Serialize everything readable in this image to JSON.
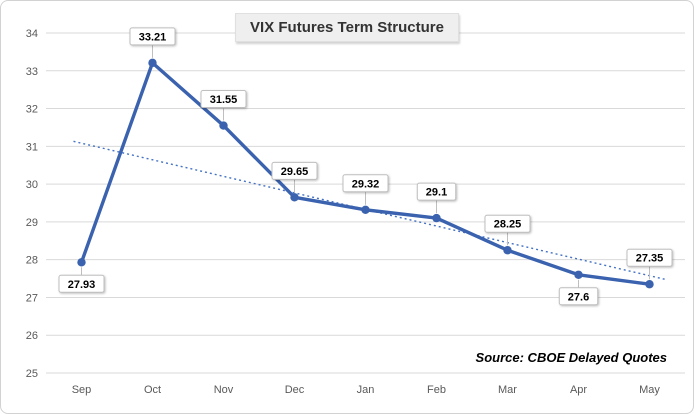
{
  "chart": {
    "title": "VIX Futures Term Structure",
    "source": "Source: CBOE Delayed Quotes"
  },
  "chart_data": {
    "type": "line",
    "title": "VIX Futures Term Structure",
    "categories": [
      "Sep",
      "Oct",
      "Nov",
      "Dec",
      "Jan",
      "Feb",
      "Mar",
      "Apr",
      "May"
    ],
    "series": [
      {
        "name": "VIX Futures",
        "values": [
          27.93,
          33.21,
          31.55,
          29.65,
          29.32,
          29.1,
          28.25,
          27.6,
          27.35
        ]
      }
    ],
    "data_labels": [
      "27.93",
      "33.21",
      "31.55",
      "29.65",
      "29.32",
      "29.1",
      "28.25",
      "27.6",
      "27.35"
    ],
    "label_positions": [
      "below",
      "above",
      "above",
      "above",
      "above",
      "above",
      "above",
      "below",
      "above"
    ],
    "xlabel": "",
    "ylabel": "",
    "ylim": [
      25,
      34
    ],
    "y_ticks": [
      25,
      26,
      27,
      28,
      29,
      30,
      31,
      32,
      33,
      34
    ],
    "grid": true,
    "legend": "none",
    "trendline": {
      "type": "linear",
      "style": "dotted"
    },
    "source_note": "Source: CBOE Delayed Quotes",
    "colors": {
      "line": "#3A62AE",
      "marker": "#3A62AE",
      "trendline": "#4472C4",
      "grid": "#D9D9D9",
      "axis_text": "#595959",
      "label_bg": "#FFFFFF",
      "label_border": "#BFBFBF"
    }
  }
}
